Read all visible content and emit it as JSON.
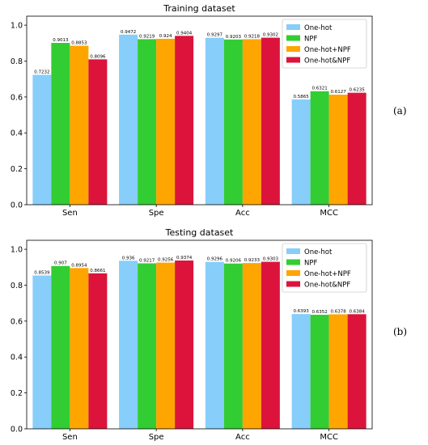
{
  "chart_data": [
    {
      "type": "bar",
      "title": "Training dataset",
      "panel_label": "(a)",
      "categories": [
        "Sen",
        "Spe",
        "Acc",
        "MCC"
      ],
      "ylim": [
        0,
        1.05
      ],
      "yticks": [
        "0.0",
        "0.2",
        "0.4",
        "0.6",
        "0.8",
        "1.0"
      ],
      "legend_position": "top-right",
      "grid": false,
      "series": [
        {
          "name": "One-hot",
          "color": "#87CEFA",
          "values": [
            0.7232,
            0.9472,
            0.9297,
            0.5865
          ],
          "labels": [
            "0.7232",
            "0.9472",
            "0.9297",
            "0.5865"
          ]
        },
        {
          "name": "NPF",
          "color": "#32CD32",
          "values": [
            0.9013,
            0.9219,
            0.9203,
            0.6321
          ],
          "labels": [
            "0.9013",
            "0.9219",
            "0.9203",
            "0.6321"
          ]
        },
        {
          "name": "One-hot+NPF",
          "color": "#FFA500",
          "values": [
            0.8853,
            0.924,
            0.9218,
            0.6127
          ],
          "labels": [
            "0.8853",
            "0.924",
            "0.9218",
            "0.6127"
          ]
        },
        {
          "name": "One-hot&NPF",
          "color": "#DC143C",
          "values": [
            0.8096,
            0.9404,
            0.9302,
            0.6235
          ],
          "labels": [
            "0.8096",
            "0.9404",
            "0.9302",
            "0.6235"
          ]
        }
      ]
    },
    {
      "type": "bar",
      "title": "Testing dataset",
      "panel_label": "(b)",
      "categories": [
        "Sen",
        "Spe",
        "Acc",
        "MCC"
      ],
      "ylim": [
        0,
        1.05
      ],
      "yticks": [
        "0.0",
        "0.2",
        "0.4",
        "0.6",
        "0.8",
        "1.0"
      ],
      "legend_position": "top-right",
      "grid": false,
      "series": [
        {
          "name": "One-hot",
          "color": "#87CEFA",
          "values": [
            0.8539,
            0.936,
            0.9296,
            0.6393
          ],
          "labels": [
            "0.8539",
            "0.936",
            "0.9296",
            "0.6393"
          ]
        },
        {
          "name": "NPF",
          "color": "#32CD32",
          "values": [
            0.907,
            0.9217,
            0.9206,
            0.6352
          ],
          "labels": [
            "0.907",
            "0.9217",
            "0.9206",
            "0.6352"
          ]
        },
        {
          "name": "One-hot+NPF",
          "color": "#FFA500",
          "values": [
            0.8954,
            0.9256,
            0.9233,
            0.6378
          ],
          "labels": [
            "0.8954",
            "0.9256",
            "0.9233",
            "0.6378"
          ]
        },
        {
          "name": "One-hot&NPF",
          "color": "#DC143C",
          "values": [
            0.8661,
            0.9374,
            0.9303,
            0.6384
          ],
          "labels": [
            "0.8661",
            "0.9374",
            "0.9303",
            "0.6384"
          ]
        }
      ]
    }
  ]
}
